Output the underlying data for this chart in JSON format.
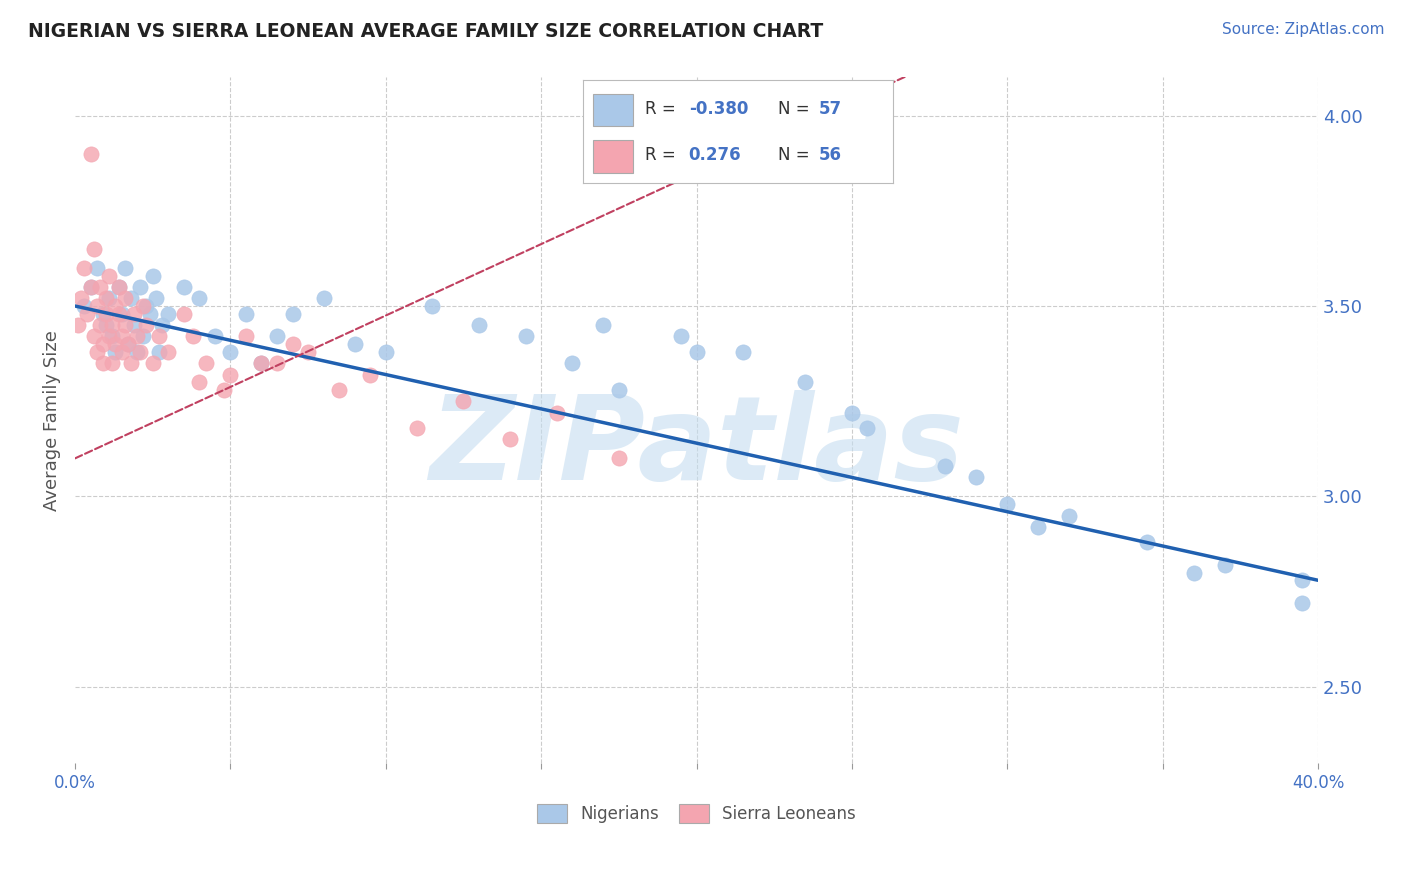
{
  "title": "NIGERIAN VS SIERRA LEONEAN AVERAGE FAMILY SIZE CORRELATION CHART",
  "source": "Source: ZipAtlas.com",
  "ylabel": "Average Family Size",
  "xlim": [
    0.0,
    0.4
  ],
  "ylim": [
    2.3,
    4.1
  ],
  "yticks_right": [
    2.5,
    3.0,
    3.5,
    4.0
  ],
  "xticks": [
    0.0,
    0.05,
    0.1,
    0.15,
    0.2,
    0.25,
    0.3,
    0.35,
    0.4
  ],
  "blue_color": "#aac8e8",
  "pink_color": "#f4a5b0",
  "blue_line_color": "#2060b0",
  "pink_line_color": "#c04060",
  "background_color": "#ffffff",
  "grid_color": "#cccccc",
  "watermark_color": "#c5ddf0",
  "title_color": "#222222",
  "source_color": "#4472c4",
  "nigerians_x": [
    0.003,
    0.005,
    0.007,
    0.009,
    0.01,
    0.011,
    0.012,
    0.013,
    0.014,
    0.015,
    0.016,
    0.017,
    0.018,
    0.019,
    0.02,
    0.021,
    0.022,
    0.023,
    0.024,
    0.025,
    0.026,
    0.027,
    0.028,
    0.03,
    0.035,
    0.04,
    0.045,
    0.05,
    0.055,
    0.06,
    0.065,
    0.07,
    0.08,
    0.09,
    0.1,
    0.115,
    0.13,
    0.145,
    0.16,
    0.175,
    0.195,
    0.215,
    0.235,
    0.255,
    0.28,
    0.3,
    0.32,
    0.345,
    0.37,
    0.395,
    0.17,
    0.2,
    0.25,
    0.29,
    0.31,
    0.36,
    0.395
  ],
  "nigerians_y": [
    3.5,
    3.55,
    3.6,
    3.48,
    3.45,
    3.52,
    3.42,
    3.38,
    3.55,
    3.48,
    3.6,
    3.4,
    3.52,
    3.45,
    3.38,
    3.55,
    3.42,
    3.5,
    3.48,
    3.58,
    3.52,
    3.38,
    3.45,
    3.48,
    3.55,
    3.52,
    3.42,
    3.38,
    3.48,
    3.35,
    3.42,
    3.48,
    3.52,
    3.4,
    3.38,
    3.5,
    3.45,
    3.42,
    3.35,
    3.28,
    3.42,
    3.38,
    3.3,
    3.18,
    3.08,
    2.98,
    2.95,
    2.88,
    2.82,
    2.78,
    3.45,
    3.38,
    3.22,
    3.05,
    2.92,
    2.8,
    2.72
  ],
  "sierraleoneans_x": [
    0.001,
    0.002,
    0.003,
    0.004,
    0.005,
    0.005,
    0.006,
    0.006,
    0.007,
    0.007,
    0.008,
    0.008,
    0.009,
    0.009,
    0.01,
    0.01,
    0.011,
    0.011,
    0.012,
    0.012,
    0.013,
    0.013,
    0.014,
    0.014,
    0.015,
    0.015,
    0.016,
    0.016,
    0.017,
    0.018,
    0.019,
    0.02,
    0.021,
    0.022,
    0.023,
    0.025,
    0.027,
    0.03,
    0.035,
    0.038,
    0.042,
    0.048,
    0.055,
    0.065,
    0.075,
    0.085,
    0.095,
    0.11,
    0.125,
    0.14,
    0.155,
    0.175,
    0.04,
    0.05,
    0.06,
    0.07
  ],
  "sierraleoneans_y": [
    3.45,
    3.52,
    3.6,
    3.48,
    3.9,
    3.55,
    3.42,
    3.65,
    3.5,
    3.38,
    3.55,
    3.45,
    3.4,
    3.35,
    3.52,
    3.48,
    3.42,
    3.58,
    3.45,
    3.35,
    3.5,
    3.4,
    3.48,
    3.55,
    3.42,
    3.38,
    3.52,
    3.45,
    3.4,
    3.35,
    3.48,
    3.42,
    3.38,
    3.5,
    3.45,
    3.35,
    3.42,
    3.38,
    3.48,
    3.42,
    3.35,
    3.28,
    3.42,
    3.35,
    3.38,
    3.28,
    3.32,
    3.18,
    3.25,
    3.15,
    3.22,
    3.1,
    3.3,
    3.32,
    3.35,
    3.4
  ]
}
